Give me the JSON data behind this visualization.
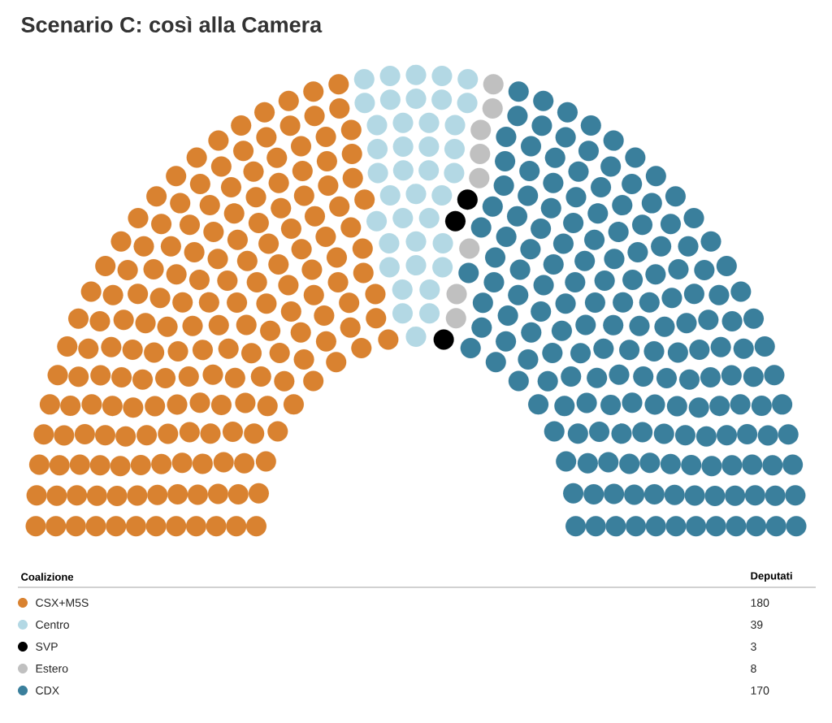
{
  "chart_data": {
    "type": "other",
    "title": "Scenario C: così alla Camera",
    "categories": [
      "CSX+M5S",
      "Centro",
      "SVP",
      "Estero",
      "CDX"
    ],
    "values": [
      180,
      39,
      3,
      8,
      170
    ],
    "colors": [
      "#d98230",
      "#b3d8e4",
      "#000000",
      "#c0c0c0",
      "#3a7f9c"
    ],
    "data_labels": true,
    "legend_title": "Coalizione",
    "annotations": [
      "Deputati"
    ]
  }
}
